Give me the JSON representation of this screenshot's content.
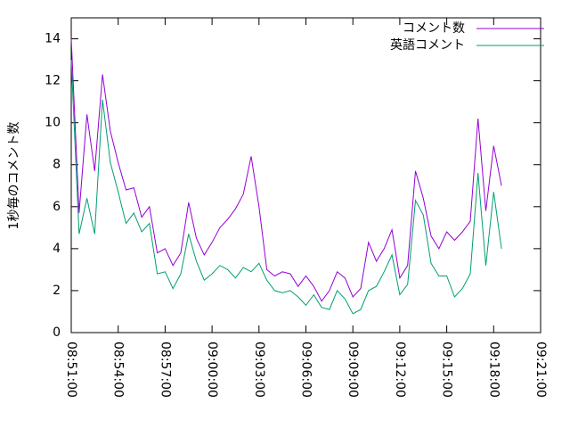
{
  "chart_data": {
    "type": "line",
    "y_label": "1秒毎のコメント数",
    "x": [
      "08:51:00",
      "08:51:30",
      "08:52:00",
      "08:52:30",
      "08:53:00",
      "08:53:30",
      "08:54:00",
      "08:54:30",
      "08:55:00",
      "08:55:30",
      "08:56:00",
      "08:56:30",
      "08:57:00",
      "08:57:30",
      "08:58:00",
      "08:58:30",
      "08:59:00",
      "08:59:30",
      "09:00:00",
      "09:00:30",
      "09:01:00",
      "09:01:30",
      "09:02:00",
      "09:02:30",
      "09:03:00",
      "09:03:30",
      "09:04:00",
      "09:04:30",
      "09:05:00",
      "09:05:30",
      "09:06:00",
      "09:06:30",
      "09:07:00",
      "09:07:30",
      "09:08:00",
      "09:08:30",
      "09:09:00",
      "09:09:30",
      "09:10:00",
      "09:10:30",
      "09:11:00",
      "09:11:30",
      "09:12:00",
      "09:12:30",
      "09:13:00",
      "09:13:30",
      "09:14:00",
      "09:14:30",
      "09:15:00",
      "09:15:30",
      "09:16:00",
      "09:16:30",
      "09:17:00",
      "09:17:30",
      "09:18:00",
      "09:18:30"
    ],
    "series": [
      {
        "name": "コメント数",
        "color": "#9400d3",
        "values": [
          14.0,
          5.7,
          10.4,
          7.7,
          12.3,
          9.6,
          8.1,
          6.8,
          6.9,
          5.5,
          6.0,
          3.8,
          4.0,
          3.2,
          3.8,
          6.2,
          4.5,
          3.7,
          4.3,
          5.0,
          5.4,
          5.9,
          6.6,
          8.4,
          6.0,
          3.0,
          2.7,
          2.9,
          2.8,
          2.2,
          2.7,
          2.2,
          1.5,
          2.0,
          2.9,
          2.6,
          1.7,
          2.1,
          4.3,
          3.4,
          4.0,
          4.9,
          2.6,
          3.2,
          7.7,
          6.4,
          4.6,
          4.0,
          4.8,
          4.4,
          4.8,
          5.3,
          10.2,
          5.8,
          8.9,
          7.0
        ]
      },
      {
        "name": "英語コメント",
        "color": "#009e73",
        "values": [
          13.0,
          4.7,
          6.4,
          4.7,
          11.1,
          8.1,
          6.7,
          5.2,
          5.7,
          4.8,
          5.2,
          2.8,
          2.9,
          2.1,
          2.8,
          4.7,
          3.4,
          2.5,
          2.8,
          3.2,
          3.0,
          2.6,
          3.1,
          2.9,
          3.3,
          2.5,
          2.0,
          1.9,
          2.0,
          1.7,
          1.3,
          1.8,
          1.2,
          1.1,
          2.0,
          1.6,
          0.9,
          1.1,
          2.0,
          2.2,
          2.9,
          3.7,
          1.8,
          2.3,
          6.3,
          5.6,
          3.3,
          2.7,
          2.7,
          1.7,
          2.1,
          2.8,
          7.6,
          3.2,
          6.7,
          4.0
        ]
      }
    ],
    "xlim": [
      "08:51:00",
      "09:21:00"
    ],
    "xticks": [
      "08:51:00",
      "08:54:00",
      "08:57:00",
      "09:00:00",
      "09:03:00",
      "09:06:00",
      "09:09:00",
      "09:12:00",
      "09:15:00",
      "09:18:00",
      "09:21:00"
    ],
    "ylim": [
      0,
      15
    ],
    "yticks": [
      0,
      2,
      4,
      6,
      8,
      10,
      12,
      14
    ],
    "legend": "top-right"
  }
}
